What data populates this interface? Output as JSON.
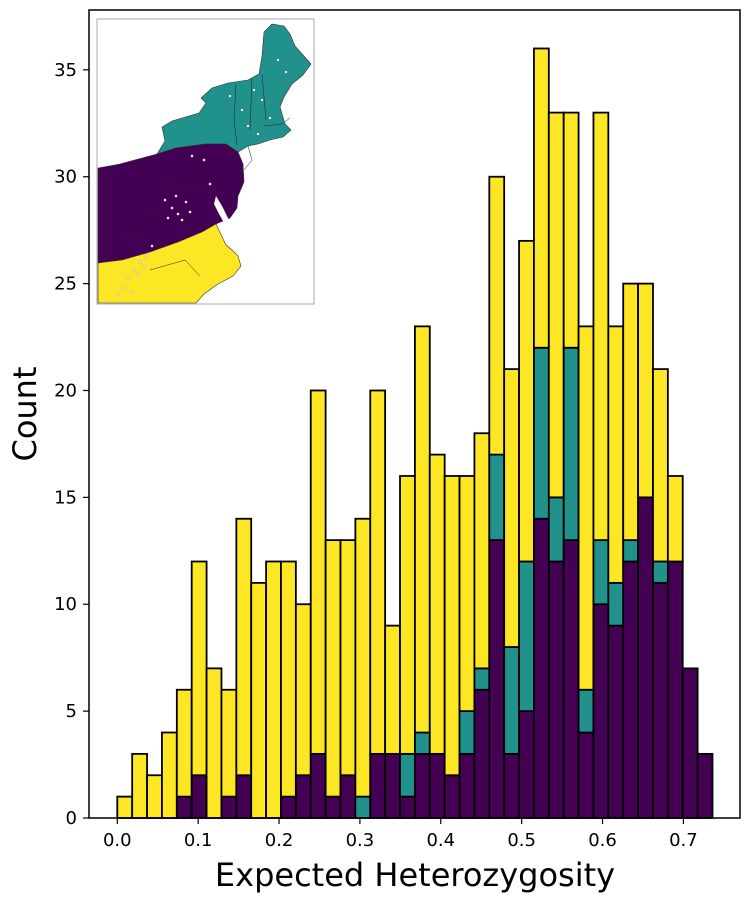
{
  "chart_data": {
    "type": "bar",
    "stacked": true,
    "xlabel": "Expected Heterozygosity",
    "ylabel": "Count",
    "xlim": [
      -0.035,
      0.77
    ],
    "ylim": [
      0,
      37.8
    ],
    "bin_width": 0.0184,
    "xticks": [
      0.0,
      0.1,
      0.2,
      0.3,
      0.4,
      0.5,
      0.6,
      0.7
    ],
    "xtick_labels": [
      "0.0",
      "0.1",
      "0.2",
      "0.3",
      "0.4",
      "0.5",
      "0.6",
      "0.7"
    ],
    "yticks": [
      0,
      5,
      10,
      15,
      20,
      25,
      30,
      35
    ],
    "ytick_labels": [
      "0",
      "5",
      "10",
      "15",
      "20",
      "25",
      "30",
      "35"
    ],
    "grid": false,
    "bin_starts": [
      0.0,
      0.0184,
      0.0368,
      0.0552,
      0.0736,
      0.092,
      0.1104,
      0.1288,
      0.1472,
      0.1656,
      0.184,
      0.2024,
      0.2208,
      0.2392,
      0.2576,
      0.276,
      0.2944,
      0.3128,
      0.3312,
      0.3496,
      0.368,
      0.3864,
      0.4048,
      0.4232,
      0.4416,
      0.46,
      0.4784,
      0.4968,
      0.5152,
      0.5336,
      0.552,
      0.5704,
      0.5888,
      0.6072,
      0.6256,
      0.644,
      0.6624,
      0.6808,
      0.6992,
      0.7176
    ],
    "series": [
      {
        "color": "#440154",
        "values": [
          0,
          0,
          0,
          0,
          1,
          2,
          0,
          1,
          2,
          0,
          0,
          1,
          2,
          3,
          1,
          2,
          0,
          3,
          3,
          1,
          3,
          3,
          2,
          3,
          6,
          13,
          3,
          5,
          14,
          12,
          13,
          4,
          10,
          9,
          12,
          15,
          11,
          12,
          7,
          3
        ]
      },
      {
        "color": "#21918c",
        "values": [
          0,
          0,
          0,
          0,
          0,
          0,
          0,
          0,
          0,
          0,
          0,
          0,
          0,
          0,
          0,
          0,
          1,
          0,
          0,
          2,
          1,
          0,
          0,
          2,
          1,
          4,
          5,
          7,
          8,
          3,
          9,
          2,
          3,
          2,
          1,
          0,
          1,
          0,
          0,
          0
        ]
      },
      {
        "color": "#fde725",
        "values": [
          1,
          3,
          2,
          4,
          5,
          10,
          7,
          5,
          12,
          11,
          12,
          11,
          8,
          17,
          12,
          11,
          13,
          17,
          6,
          13,
          19,
          14,
          14,
          11,
          11,
          13,
          13,
          15,
          14,
          18,
          11,
          17,
          20,
          12,
          12,
          10,
          9,
          4,
          0,
          0
        ]
      }
    ],
    "inset_map": {
      "regions": [
        {
          "color": "#21918c"
        },
        {
          "color": "#440154"
        },
        {
          "color": "#fde725"
        }
      ]
    }
  }
}
